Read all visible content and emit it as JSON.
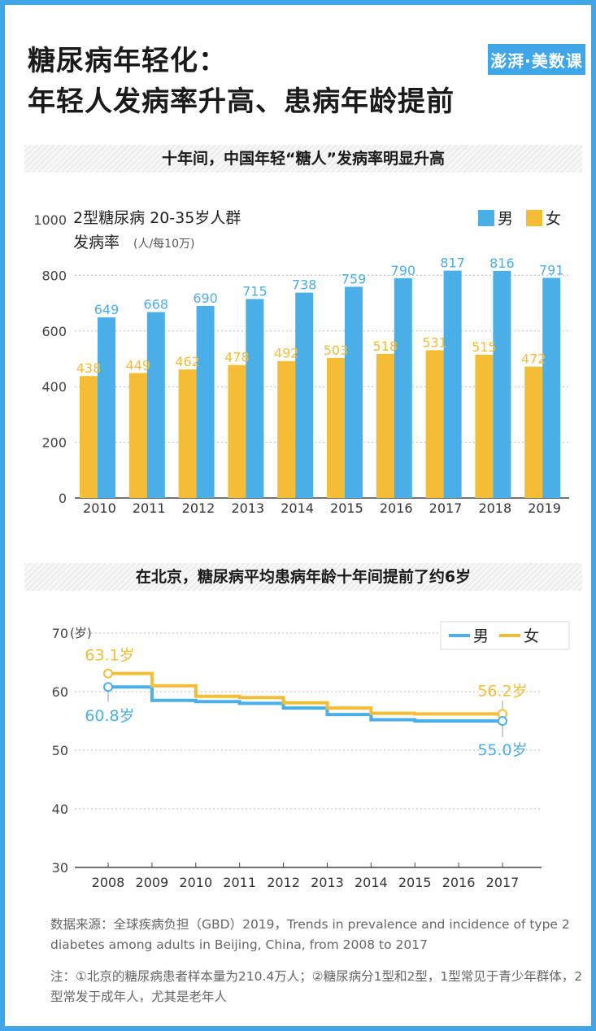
{
  "header": {
    "title_line1": "糖尿病年轻化：",
    "title_line2": "年轻人发病率升高、患病年龄提前",
    "logo": "澎湃·美数课"
  },
  "colors": {
    "male": "#4aaee9",
    "female": "#f5bd35",
    "frame": "#3fa6e8"
  },
  "chart_data": [
    {
      "type": "bar",
      "title": "十年间，中国年轻“糖人”发病率明显升高",
      "subtitle_line1": "2型糖尿病 20-35岁人群",
      "subtitle_line2": "发病率",
      "unit": "(人/每10万)",
      "categories": [
        "2010",
        "2011",
        "2012",
        "2013",
        "2014",
        "2015",
        "2016",
        "2017",
        "2018",
        "2019"
      ],
      "series": [
        {
          "name": "男",
          "values": [
            649,
            668,
            690,
            715,
            738,
            759,
            790,
            817,
            816,
            791
          ]
        },
        {
          "name": "女",
          "values": [
            438,
            449,
            462,
            478,
            492,
            503,
            518,
            531,
            515,
            472
          ]
        }
      ],
      "ylim": [
        0,
        1000
      ],
      "yticks": [
        "0",
        "200",
        "400",
        "600",
        "800",
        "1000"
      ],
      "legend": "top-right",
      "grid": true
    },
    {
      "type": "line",
      "title": "在北京，糖尿病平均患病年龄十年间提前了约6岁",
      "ylabel_unit": "(岁)",
      "x": [
        "2008",
        "2009",
        "2010",
        "2011",
        "2012",
        "2013",
        "2014",
        "2015",
        "2016",
        "2017"
      ],
      "series": [
        {
          "name": "男",
          "values": [
            60.8,
            58.5,
            58.3,
            58.0,
            57.2,
            56.1,
            55.2,
            55.0,
            55.0,
            55.0
          ]
        },
        {
          "name": "女",
          "values": [
            63.1,
            61.0,
            59.2,
            59.0,
            58.1,
            57.2,
            56.3,
            56.2,
            56.2,
            56.2
          ]
        }
      ],
      "ylim": [
        30,
        70
      ],
      "yticks": [
        "30",
        "40",
        "50",
        "60",
        "70"
      ],
      "annotations": {
        "female_start": "63.1岁",
        "male_start": "60.8岁",
        "female_end": "56.2岁",
        "male_end": "55.0岁"
      },
      "legend": "top-right",
      "grid": true
    }
  ],
  "footer": {
    "source": "数据来源：全球疾病负担（GBD）2019，Trends in prevalence and incidence of type 2 diabetes among adults in Beijing, China, from 2008 to 2017",
    "note": "注：①北京的糖尿病患者样本量为210.4万人；②糖尿病分1型和2型，1型常见于青少年群体，2型常发于成年人，尤其是老年人"
  }
}
